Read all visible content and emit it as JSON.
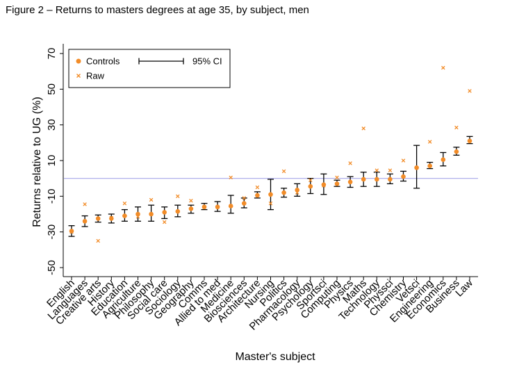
{
  "figure_title": "Figure 2 – Returns to masters degrees at age 35, by subject, men",
  "colors": {
    "controls": "#F28C28",
    "raw": "#F28C28",
    "ci": "#000000",
    "reference_line": "#A7A7E8",
    "axis": "#000000"
  },
  "chart_data": {
    "type": "scatter",
    "title": "",
    "xlabel": "Master's subject",
    "ylabel": "Returns relative to UG (%)",
    "ylim": [
      -50,
      70
    ],
    "yticks": [
      -50,
      -30,
      -10,
      10,
      30,
      50,
      70
    ],
    "reference_line": 0,
    "legend": {
      "position": "top-left",
      "entries": {
        "controls": "Controls",
        "raw": "Raw",
        "ci": "95% CI"
      }
    },
    "categories": [
      "English",
      "Languages",
      "Creative arts",
      "History",
      "Education",
      "Agriculture",
      "Philosophy",
      "Social care",
      "Sociology",
      "Geography",
      "Comms",
      "Allied to med",
      "Medicine",
      "Biosciences",
      "Architecture",
      "Nursing",
      "Politics",
      "Pharmacology",
      "Psychology",
      "Sportsci",
      "Computing",
      "Physics",
      "Maths",
      "Technology",
      "Physsci",
      "Chemistry",
      "Vetsci",
      "Engineering",
      "Economics",
      "Business",
      "Law"
    ],
    "series": [
      {
        "name": "Controls",
        "values": [
          -29.5,
          -24,
          -22.5,
          -22.5,
          -21,
          -20,
          -20,
          -19,
          -18.5,
          -17,
          -16,
          -16,
          -15.5,
          -14,
          -9.5,
          -9,
          -8,
          -6.5,
          -4.5,
          -3.5,
          -3,
          -2,
          -0.5,
          -0.5,
          -0.5,
          1,
          6,
          7,
          10.5,
          15,
          21
        ]
      },
      {
        "name": "Raw",
        "values": [
          -30,
          -14.5,
          -35,
          -22,
          -14,
          -21.5,
          -12,
          -24.5,
          -10,
          -12.5,
          -16,
          -16,
          0.5,
          -11,
          -5,
          -14,
          4,
          -8,
          -1,
          -4,
          0.5,
          8.5,
          28,
          4.5,
          4.5,
          10,
          6,
          20.5,
          62,
          28.5,
          49
        ]
      },
      {
        "name": "95% CI",
        "low": [
          -32.5,
          -27,
          -24.5,
          -25,
          -24,
          -24,
          -24,
          -22.5,
          -21.5,
          -19.5,
          -17.5,
          -18.5,
          -19.5,
          -16.5,
          -11,
          -17.5,
          -10.5,
          -10,
          -8.5,
          -9,
          -4.5,
          -5,
          -4.5,
          -4.5,
          -3,
          -1.5,
          -5.5,
          5.5,
          7,
          13,
          19.5
        ],
        "high": [
          -26.5,
          -21,
          -20.5,
          -20,
          -17.5,
          -16,
          -15,
          -16,
          -15,
          -15,
          -14,
          -13,
          -9.5,
          -11,
          -7.5,
          -0.5,
          -5.5,
          -3,
          0,
          2.5,
          -1,
          1,
          3.5,
          3.5,
          2.5,
          4,
          18.5,
          9,
          14.5,
          17.5,
          23.5
        ]
      }
    ]
  }
}
